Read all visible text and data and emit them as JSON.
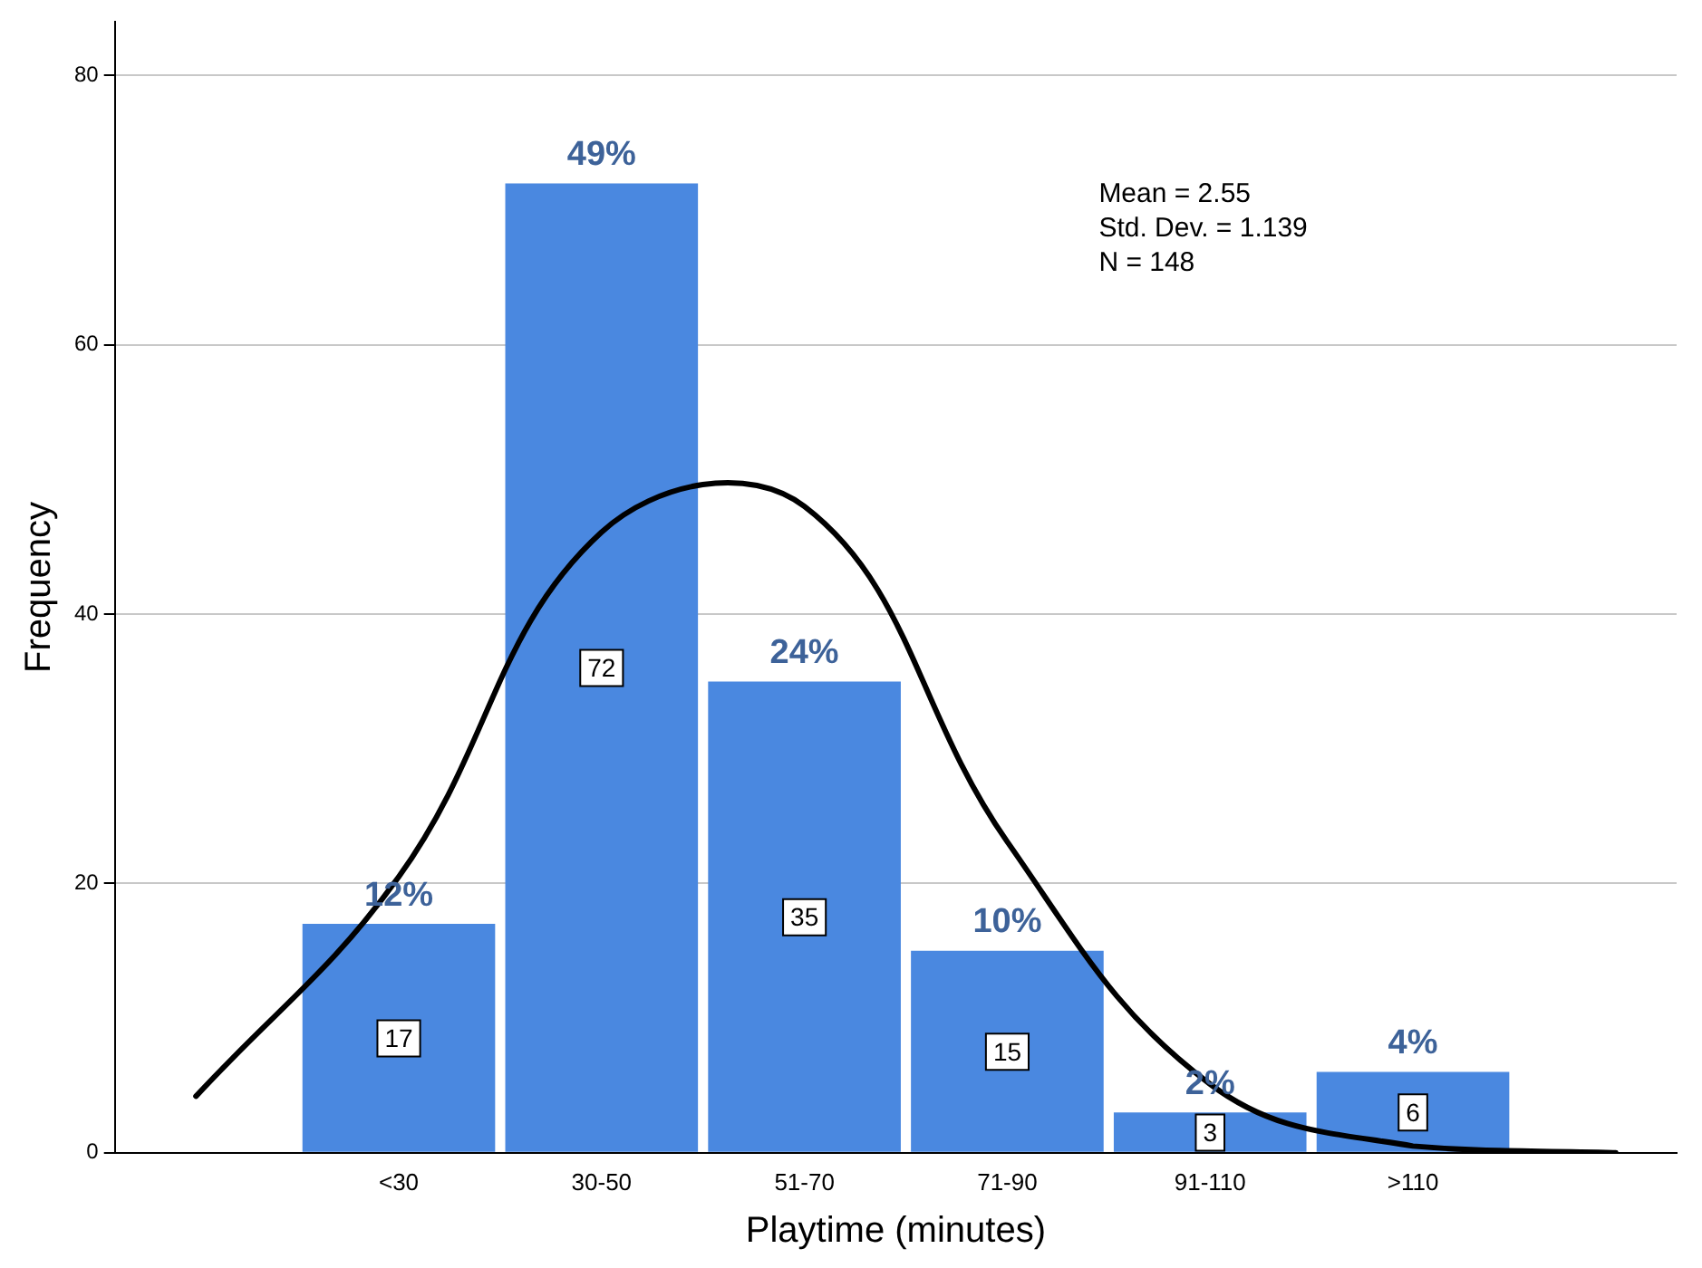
{
  "chart_data": {
    "type": "bar",
    "xlabel": "Playtime (minutes)",
    "ylabel": "Frequency",
    "categories": [
      null,
      "<30",
      "30-50",
      "51-70",
      "71-90",
      "91-110",
      ">110",
      null
    ],
    "ylim": [
      0,
      84
    ],
    "yticks": [
      0,
      20,
      40,
      60,
      80
    ],
    "series": [
      {
        "color": "#4a88e0",
        "values": [
          null,
          17,
          72,
          35,
          15,
          3,
          6,
          null
        ],
        "value_labels": [
          null,
          "17",
          "72",
          "35",
          "15",
          "3",
          "6",
          null
        ]
      },
      {
        "type": "line",
        "color": "#000000",
        "values": [
          4.2,
          20.5,
          46.1,
          48.0,
          23.1,
          5.1,
          0.5,
          0.0
        ]
      }
    ],
    "grid": "y",
    "legend": false,
    "marker": "none",
    "line_style": "solid",
    "annotations": [
      {
        "text": "12%",
        "x": "<30",
        "y": 17
      },
      {
        "text": "49%",
        "x": "30-50",
        "y": 72
      },
      {
        "text": "24%",
        "x": "51-70",
        "y": 35
      },
      {
        "text": "10%",
        "x": "71-90",
        "y": 15
      },
      {
        "text": "2%",
        "x": "91-110",
        "y": 3
      },
      {
        "text": "4%",
        "x": ">110",
        "y": 6
      },
      "Mean = 2.55",
      "Std. Dev. = 1.139",
      "N = 148"
    ]
  }
}
